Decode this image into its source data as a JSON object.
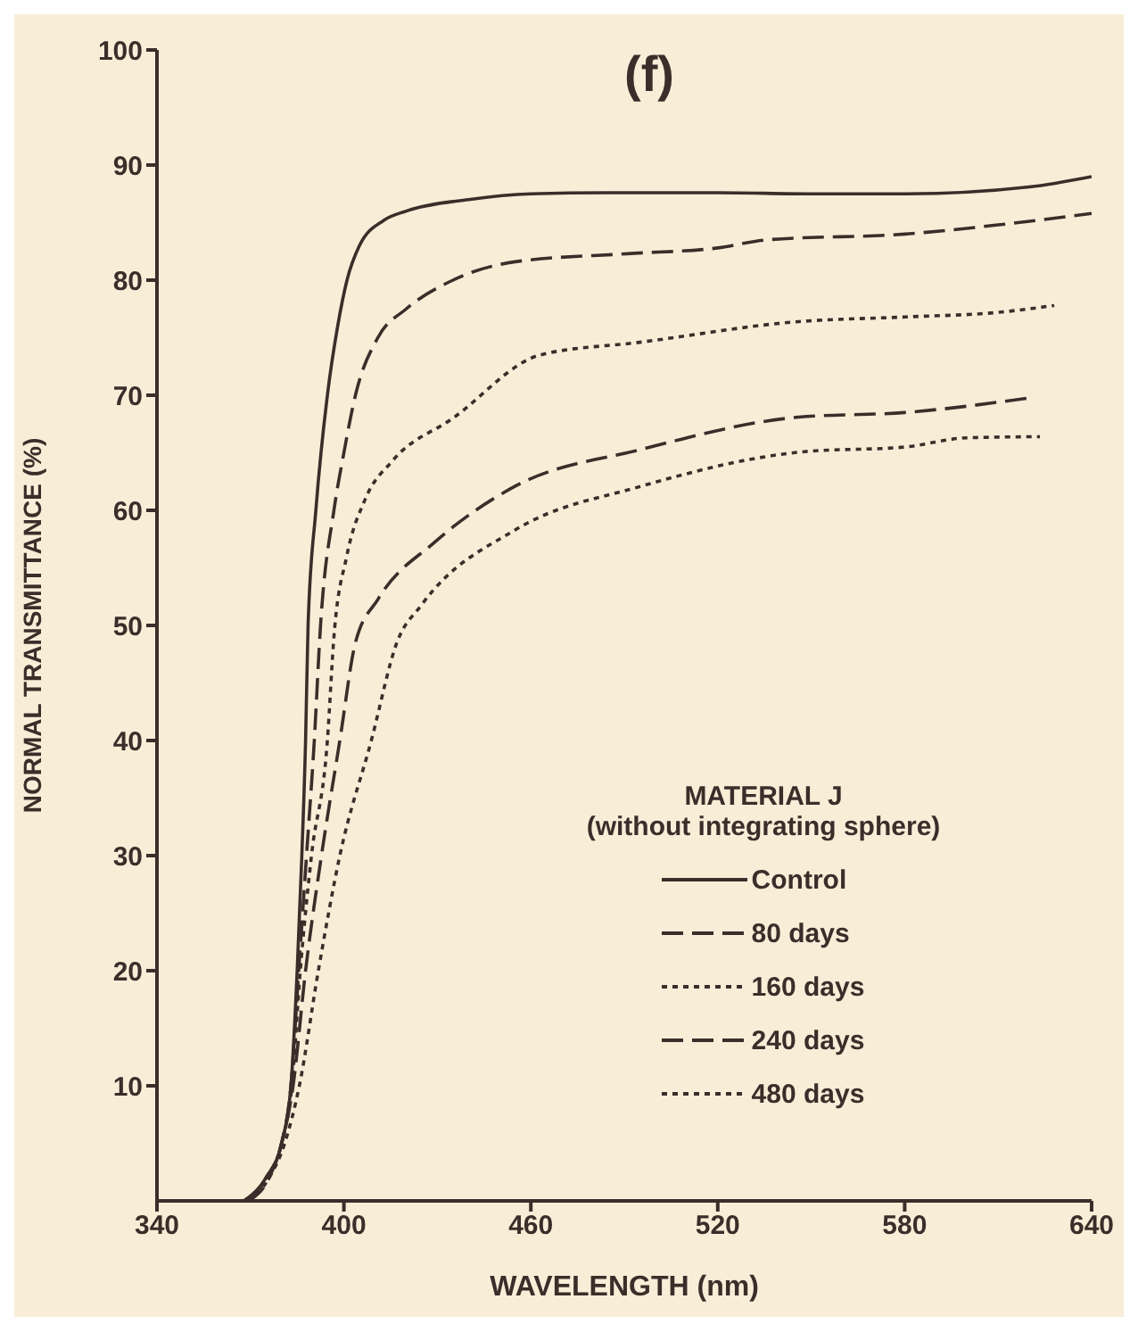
{
  "chart_data": {
    "type": "line",
    "title": "(f)",
    "xlabel": "WAVELENGTH (nm)",
    "ylabel": "NORMAL TRANSMITTANCE (%)",
    "legend_title": "MATERIAL J\n(without integrating sphere)",
    "legend": "right",
    "grid": false,
    "marker": "none",
    "xlim": [
      340,
      640
    ],
    "xticks": [
      340,
      400,
      460,
      520,
      580,
      640
    ],
    "ylim": [
      0,
      100
    ],
    "yticks": [
      10,
      20,
      30,
      40,
      50,
      60,
      70,
      80,
      90,
      100
    ],
    "series": [
      {
        "name": "Control",
        "color": "#3a2e2a",
        "line_style": "solid",
        "x": [
          368,
          375,
          380,
          383,
          385,
          386.5,
          387.7,
          388.5,
          391,
          394.7,
          398,
          401,
          405,
          412.8,
          420,
          440,
          460,
          485,
          520,
          550,
          580,
          620,
          640
        ],
        "values": [
          0,
          2,
          5,
          10,
          20,
          30,
          40,
          50,
          60,
          70,
          76,
          80,
          83,
          85.2,
          86,
          87,
          87.5,
          87.6,
          87.6,
          87.5,
          87.5,
          88.1,
          89
        ]
      },
      {
        "name": "80 days",
        "color": "#3a2e2a",
        "line_style": "dashed",
        "x": [
          368,
          375,
          380,
          383,
          385.5,
          388,
          390.5,
          392.5,
          396.8,
          400,
          403.7,
          410.9,
          420,
          435,
          455,
          491,
          520,
          535.7,
          580,
          610,
          640
        ],
        "values": [
          0,
          2,
          5,
          10,
          20,
          30,
          40,
          50,
          60,
          65,
          70,
          75,
          77.5,
          80,
          81.6,
          82.3,
          82.8,
          83.5,
          84,
          84.8,
          85.8
        ]
      },
      {
        "name": "160 days",
        "color": "#3a2e2a",
        "line_style": "dotted",
        "x": [
          368,
          375,
          380,
          383.3,
          386,
          389.6,
          394.7,
          396.8,
          400.9,
          406.9,
          415.6,
          435,
          463,
          495,
          546,
          580,
          610,
          628
        ],
        "values": [
          0,
          2,
          5,
          10,
          20,
          30,
          40,
          49,
          56,
          61,
          64.3,
          68,
          73.5,
          74.6,
          76.4,
          76.8,
          77.2,
          77.8
        ]
      },
      {
        "name": "240 days",
        "color": "#3a2e2a",
        "line_style": "dashed",
        "x": [
          369,
          376,
          380,
          383.7,
          387.7,
          392.8,
          398.7,
          403.7,
          411,
          429,
          455,
          495.5,
          546,
          580,
          621
        ],
        "values": [
          0,
          2,
          5,
          10,
          20,
          30,
          40,
          48.5,
          52.3,
          57.2,
          62.1,
          65.3,
          68.1,
          68.5,
          69.8
        ]
      },
      {
        "name": "480 days",
        "color": "#3a2e2a",
        "line_style": "dotted",
        "x": [
          369,
          376,
          381,
          385.7,
          391.8,
          398.7,
          408.8,
          417,
          425,
          455,
          495.5,
          547.9,
          580,
          600,
          623.4
        ],
        "values": [
          0,
          2,
          5,
          10,
          20,
          30,
          40,
          48.5,
          51.8,
          58.3,
          62.1,
          65.1,
          65.5,
          66.3,
          66.4
        ]
      }
    ]
  }
}
